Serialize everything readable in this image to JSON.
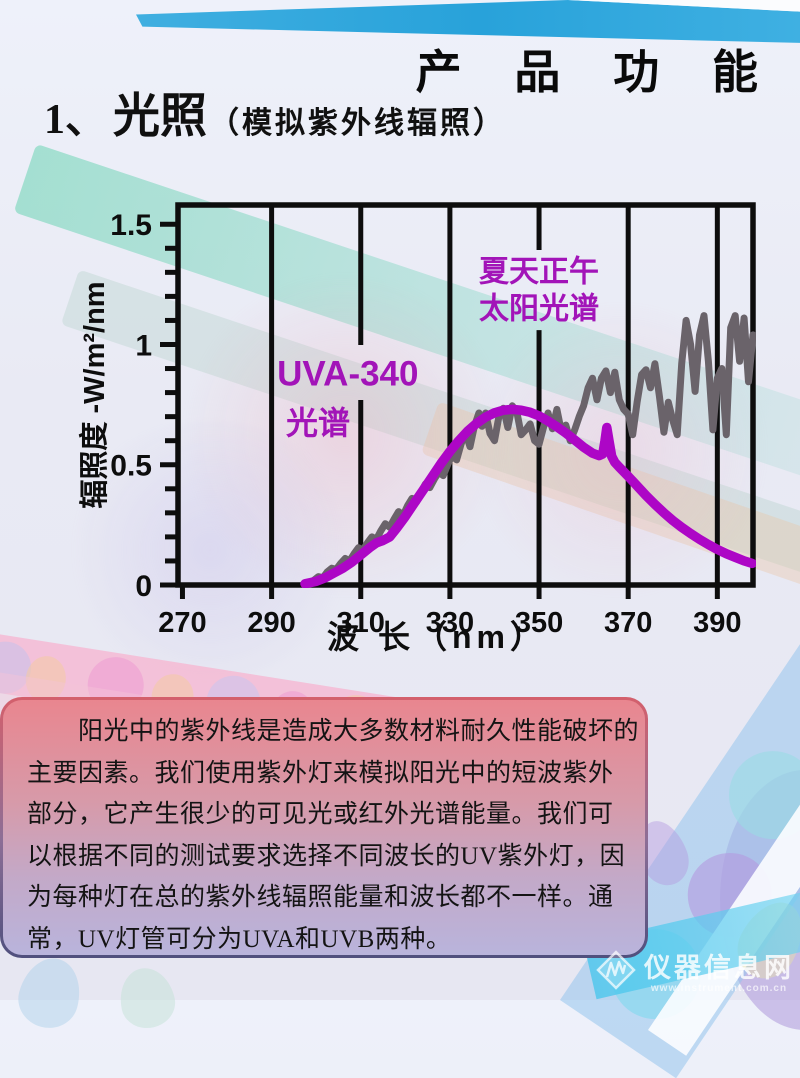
{
  "page": {
    "title": "产 品 功 能"
  },
  "section": {
    "number": "1、",
    "name": "光照",
    "subtitle": "（模拟紫外线辐照）"
  },
  "chart_data": {
    "type": "line",
    "title": "",
    "xlabel": "波 长（nm）",
    "ylabel": "辐照度 -W/m²/nm",
    "xlim": [
      269,
      398
    ],
    "ylim": [
      0,
      1.58
    ],
    "x_ticks": [
      270,
      290,
      310,
      330,
      350,
      370,
      390
    ],
    "y_ticks": [
      0,
      0.5,
      1,
      1.5
    ],
    "y_tick_labels": [
      "0",
      "0.5",
      "1",
      "1.5"
    ],
    "y_minor_step": 0.1,
    "grid": "vertical-only",
    "legend_position": "none",
    "gridlines": {
      "x_nm": [
        290,
        310,
        330,
        350,
        370,
        390
      ],
      "gaps": {
        "310": [
          0.769,
          0.998
        ],
        "350": [
          1.06,
          1.393
        ]
      }
    },
    "series": [
      {
        "name": "夏天正午太阳光谱",
        "color": "#6a636a",
        "width": 7,
        "points": [
          [
            298,
            0.005
          ],
          [
            299.5,
            0.02
          ],
          [
            300.5,
            0.035
          ],
          [
            301.5,
            0.03
          ],
          [
            302.5,
            0.055
          ],
          [
            303.5,
            0.07
          ],
          [
            304.5,
            0.065
          ],
          [
            305.5,
            0.09
          ],
          [
            306.5,
            0.11
          ],
          [
            307.5,
            0.1
          ],
          [
            308.5,
            0.13
          ],
          [
            309.5,
            0.155
          ],
          [
            310.5,
            0.145
          ],
          [
            311.5,
            0.175
          ],
          [
            312.5,
            0.2
          ],
          [
            313.5,
            0.19
          ],
          [
            314.5,
            0.225
          ],
          [
            315.5,
            0.255
          ],
          [
            316.5,
            0.24
          ],
          [
            317.5,
            0.275
          ],
          [
            318.5,
            0.305
          ],
          [
            319.5,
            0.29
          ],
          [
            320.5,
            0.33
          ],
          [
            321.5,
            0.36
          ],
          [
            322.5,
            0.345
          ],
          [
            323.5,
            0.385
          ],
          [
            324.5,
            0.42
          ],
          [
            325.5,
            0.405
          ],
          [
            326.5,
            0.44
          ],
          [
            327.5,
            0.47
          ],
          [
            328.5,
            0.455
          ],
          [
            329.5,
            0.5
          ],
          [
            330.5,
            0.54
          ],
          [
            331.5,
            0.52
          ],
          [
            332.5,
            0.585
          ],
          [
            333.5,
            0.635
          ],
          [
            334.5,
            0.575
          ],
          [
            335.5,
            0.66
          ],
          [
            336.5,
            0.715
          ],
          [
            337.2,
            0.66
          ],
          [
            338,
            0.715
          ],
          [
            339,
            0.63
          ],
          [
            340,
            0.6
          ],
          [
            341,
            0.7
          ],
          [
            342,
            0.735
          ],
          [
            343,
            0.655
          ],
          [
            344,
            0.745
          ],
          [
            345,
            0.72
          ],
          [
            346,
            0.625
          ],
          [
            347,
            0.645
          ],
          [
            348,
            0.67
          ],
          [
            349,
            0.6
          ],
          [
            350,
            0.585
          ],
          [
            351,
            0.655
          ],
          [
            352,
            0.715
          ],
          [
            353,
            0.65
          ],
          [
            354,
            0.73
          ],
          [
            355,
            0.64
          ],
          [
            356,
            0.665
          ],
          [
            357,
            0.6
          ],
          [
            358,
            0.645
          ],
          [
            359,
            0.7
          ],
          [
            360,
            0.745
          ],
          [
            361,
            0.82
          ],
          [
            362,
            0.86
          ],
          [
            363,
            0.77
          ],
          [
            364,
            0.86
          ],
          [
            365,
            0.89
          ],
          [
            366,
            0.8
          ],
          [
            367,
            0.885
          ],
          [
            368,
            0.77
          ],
          [
            369,
            0.73
          ],
          [
            370,
            0.71
          ],
          [
            371,
            0.625
          ],
          [
            372,
            0.76
          ],
          [
            373,
            0.875
          ],
          [
            374,
            0.895
          ],
          [
            375,
            0.82
          ],
          [
            376,
            0.92
          ],
          [
            377,
            0.785
          ],
          [
            378,
            0.635
          ],
          [
            379,
            0.76
          ],
          [
            380,
            0.685
          ],
          [
            381,
            0.625
          ],
          [
            382,
            0.92
          ],
          [
            383,
            1.1
          ],
          [
            384,
            1.0
          ],
          [
            385,
            0.805
          ],
          [
            386,
            1.04
          ],
          [
            387,
            1.12
          ],
          [
            388,
            0.93
          ],
          [
            389,
            0.645
          ],
          [
            390,
            0.86
          ],
          [
            391,
            0.9
          ],
          [
            392,
            0.625
          ],
          [
            393,
            1.07
          ],
          [
            394,
            1.12
          ],
          [
            395,
            0.93
          ],
          [
            396,
            1.11
          ],
          [
            397,
            0.845
          ],
          [
            398,
            1.04
          ]
        ]
      },
      {
        "name": "UVA-340光谱",
        "color": "#ad06c6",
        "width": 9.5,
        "points": [
          [
            297.5,
            0.005
          ],
          [
            300,
            0.015
          ],
          [
            302,
            0.03
          ],
          [
            304,
            0.05
          ],
          [
            306,
            0.07
          ],
          [
            308,
            0.095
          ],
          [
            310,
            0.125
          ],
          [
            312,
            0.155
          ],
          [
            313.5,
            0.175
          ],
          [
            315,
            0.185
          ],
          [
            316.5,
            0.2
          ],
          [
            318,
            0.235
          ],
          [
            320,
            0.285
          ],
          [
            322,
            0.34
          ],
          [
            324,
            0.395
          ],
          [
            326,
            0.45
          ],
          [
            328,
            0.505
          ],
          [
            330,
            0.555
          ],
          [
            332,
            0.6
          ],
          [
            334,
            0.64
          ],
          [
            336,
            0.672
          ],
          [
            338,
            0.698
          ],
          [
            340,
            0.716
          ],
          [
            342,
            0.727
          ],
          [
            344,
            0.73
          ],
          [
            346,
            0.727
          ],
          [
            348,
            0.718
          ],
          [
            350,
            0.703
          ],
          [
            352,
            0.682
          ],
          [
            354,
            0.658
          ],
          [
            356,
            0.632
          ],
          [
            358,
            0.603
          ],
          [
            360,
            0.573
          ],
          [
            362,
            0.548
          ],
          [
            363.5,
            0.538
          ],
          [
            364.3,
            0.545
          ],
          [
            364.8,
            0.6
          ],
          [
            365.2,
            0.655
          ],
          [
            365.7,
            0.6
          ],
          [
            366.3,
            0.535
          ],
          [
            367,
            0.51
          ],
          [
            368,
            0.49
          ],
          [
            370,
            0.452
          ],
          [
            372,
            0.412
          ],
          [
            374,
            0.372
          ],
          [
            376,
            0.335
          ],
          [
            378,
            0.3
          ],
          [
            380,
            0.268
          ],
          [
            382,
            0.24
          ],
          [
            384,
            0.214
          ],
          [
            386,
            0.19
          ],
          [
            388,
            0.168
          ],
          [
            390,
            0.148
          ],
          [
            392,
            0.13
          ],
          [
            394,
            0.115
          ],
          [
            396,
            0.1
          ],
          [
            397.8,
            0.09
          ]
        ]
      }
    ],
    "annotations": [
      {
        "text": "UVA-340",
        "nm": 307.1,
        "value": 0.88,
        "size": 35,
        "color": "#a214b8"
      },
      {
        "text": "光谱",
        "nm": 300.4,
        "value": 0.674,
        "size": 32,
        "color": "#a214b8"
      },
      {
        "text": "夏天正午",
        "nm": 350.0,
        "value": 1.306,
        "size": 30,
        "color": "#a214b8"
      },
      {
        "text": "太阳光谱",
        "nm": 350.0,
        "value": 1.152,
        "size": 30,
        "color": "#a214b8"
      }
    ],
    "axis_color": "#0d0d0d"
  },
  "panel": {
    "lines": [
      "　　阳光中的紫外线是造成大多数材料耐久性能破坏的",
      "主要因素。我们使用紫外灯来模拟阳光中的短波紫外",
      "部分，它产生很少的可见光或红外光谱能量。我们可",
      "以根据不同的测试要求选择不同波长的UV紫外灯，因",
      "为每种灯在总的紫外线辐照能量和波长都不一样。通",
      "常，UV灯管可分为UVA和UVB两种。"
    ]
  },
  "watermark": {
    "site": "仪器信息网",
    "url": "www.instrument.com.cn",
    "logo": "diamond-zigzag-logo"
  },
  "colors": {
    "uva_curve": "#ad06c6",
    "solar_curve": "#6a636a",
    "annotation_magenta": "#a214b8",
    "panel_top": "#e9868f",
    "panel_bottom": "#b9b4dc",
    "top_band_cyan": "#2ba3da"
  }
}
